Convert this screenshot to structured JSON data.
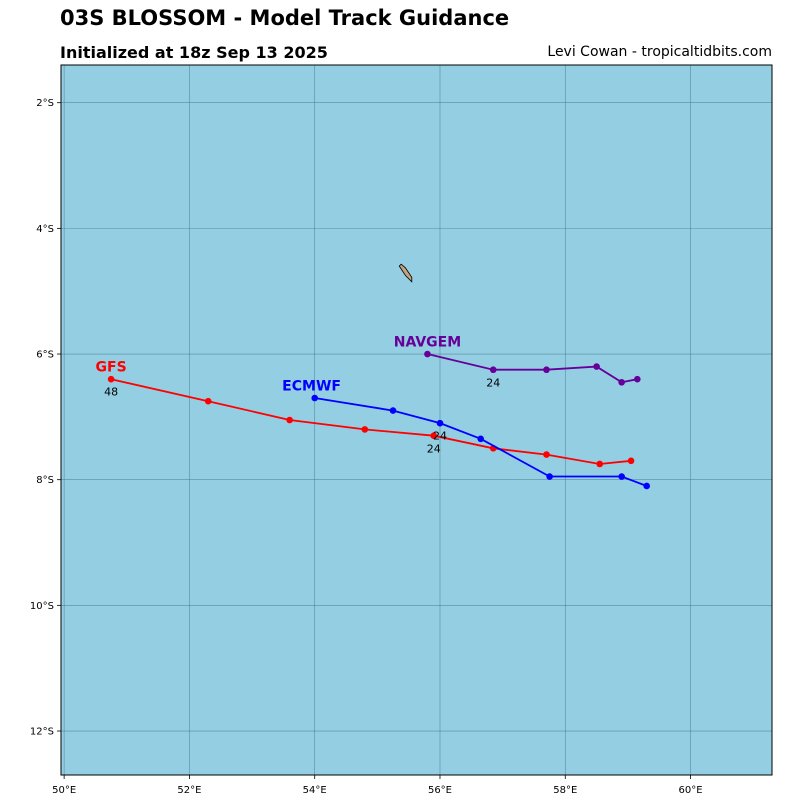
{
  "header": {
    "title": "03S BLOSSOM - Model Track Guidance",
    "subtitle": "Initialized at 18z Sep 13 2025",
    "credit": "Levi Cowan - tropicaltidbits.com"
  },
  "chart_data": {
    "type": "line",
    "title": "03S BLOSSOM - Model Track Guidance",
    "subtitle": "Initialized at 18z Sep 13 2025",
    "xlim": [
      49.95,
      61.3
    ],
    "ylim": [
      -12.7,
      -1.4
    ],
    "grid": true,
    "ocean_color": "#94cee3",
    "land_color": "#c4a27f",
    "x_ticks": [
      {
        "value": 50,
        "label": "50°E"
      },
      {
        "value": 52,
        "label": "52°E"
      },
      {
        "value": 54,
        "label": "54°E"
      },
      {
        "value": 56,
        "label": "56°E"
      },
      {
        "value": 58,
        "label": "58°E"
      },
      {
        "value": 60,
        "label": "60°E"
      }
    ],
    "y_ticks": [
      {
        "value": -2,
        "label": "2°S"
      },
      {
        "value": -4,
        "label": "4°S"
      },
      {
        "value": -6,
        "label": "6°S"
      },
      {
        "value": -8,
        "label": "8°S"
      },
      {
        "value": -10,
        "label": "10°S"
      },
      {
        "value": -12,
        "label": "12°S"
      }
    ],
    "island": [
      [
        55.35,
        -4.6
      ],
      [
        55.45,
        -4.75
      ],
      [
        55.55,
        -4.85
      ],
      [
        55.55,
        -4.78
      ],
      [
        55.45,
        -4.63
      ],
      [
        55.38,
        -4.57
      ]
    ],
    "series": [
      {
        "name": "GFS",
        "color": "#ff0000",
        "label_lon": 50.75,
        "label_lat": -6.2,
        "points": [
          [
            59.05,
            -7.7
          ],
          [
            58.55,
            -7.75
          ],
          [
            57.7,
            -7.6
          ],
          [
            56.85,
            -7.5
          ],
          [
            55.9,
            -7.3
          ],
          [
            54.8,
            -7.2
          ],
          [
            53.6,
            -7.05
          ],
          [
            52.3,
            -6.75
          ],
          [
            50.75,
            -6.4
          ]
        ],
        "hour_labels": [
          {
            "lon": 55.9,
            "lat": -7.5,
            "text": "24"
          },
          {
            "lon": 50.75,
            "lat": -6.6,
            "text": "48"
          }
        ]
      },
      {
        "name": "ECMWF",
        "color": "#0000ff",
        "label_lon": 53.95,
        "label_lat": -6.5,
        "points": [
          [
            59.3,
            -8.1
          ],
          [
            58.9,
            -7.95
          ],
          [
            57.75,
            -7.95
          ],
          [
            56.65,
            -7.35
          ],
          [
            56.0,
            -7.1
          ],
          [
            55.25,
            -6.9
          ],
          [
            54.0,
            -6.7
          ]
        ],
        "hour_labels": [
          {
            "lon": 56.0,
            "lat": -7.3,
            "text": "24"
          }
        ]
      },
      {
        "name": "NAVGEM",
        "color": "#660099",
        "label_lon": 55.8,
        "label_lat": -5.8,
        "points": [
          [
            59.15,
            -6.4
          ],
          [
            58.9,
            -6.45
          ],
          [
            58.5,
            -6.2
          ],
          [
            57.7,
            -6.25
          ],
          [
            56.85,
            -6.25
          ],
          [
            55.8,
            -6.0
          ]
        ],
        "hour_labels": [
          {
            "lon": 56.85,
            "lat": -6.45,
            "text": "24"
          }
        ]
      }
    ]
  }
}
